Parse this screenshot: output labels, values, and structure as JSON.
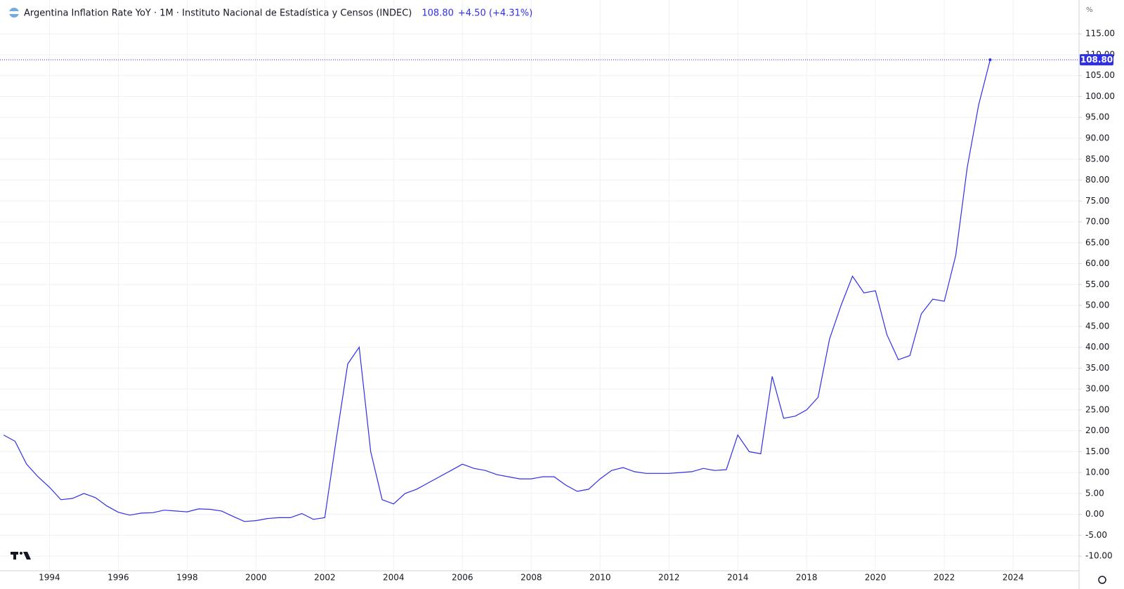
{
  "chart_data": {
    "type": "line",
    "title": "Argentina Inflation Rate YoY · 1M · Instituto Nacional de Estadística y Censos (INDEC)",
    "last_value_label": "108.80",
    "change": "+4.50 (+4.31%)",
    "unit": "%",
    "color": "#2f2fe8",
    "grid": true,
    "categories": [
      null,
      null,
      null,
      null,
      "1994",
      null,
      null,
      null,
      null,
      null,
      "1996",
      null,
      null,
      null,
      null,
      null,
      "1998",
      null,
      null,
      null,
      null,
      null,
      "2000",
      null,
      null,
      null,
      null,
      null,
      "2002",
      null,
      null,
      null,
      null,
      null,
      "2004",
      null,
      null,
      null,
      null,
      null,
      "2006",
      null,
      null,
      null,
      null,
      null,
      "2008",
      null,
      null,
      null,
      null,
      null,
      "2010",
      null,
      null,
      null,
      null,
      null,
      "2012",
      null,
      null,
      null,
      null,
      null,
      "2014",
      null,
      null,
      null,
      null,
      null,
      "2018",
      null,
      null,
      null,
      null,
      null,
      "2020",
      null,
      null,
      null,
      null,
      null,
      "2022",
      null,
      null,
      null,
      null,
      null,
      "2024"
    ],
    "values": [
      19,
      17.5,
      12,
      9,
      6.5,
      3.5,
      3.8,
      5,
      4,
      2,
      0.5,
      -0.2,
      0.3,
      0.4,
      1,
      0.8,
      0.6,
      1.3,
      1.2,
      0.8,
      -0.5,
      -1.7,
      -1.5,
      -1,
      -0.8,
      -0.8,
      0.2,
      -1.2,
      -0.8,
      18,
      36,
      40,
      15,
      3.5,
      2.5,
      5,
      6,
      7.5,
      9,
      10.5,
      12,
      11,
      10.5,
      9.5,
      9,
      8.5,
      8.5,
      9,
      9,
      7,
      5.5,
      6,
      8.5,
      10.5,
      11.2,
      10.2,
      9.8,
      9.8,
      9.8,
      10,
      10.2,
      11,
      10.5,
      10.7,
      19,
      15,
      14.5,
      33,
      23,
      23.5,
      25,
      28,
      42,
      50,
      57,
      53,
      53.5,
      43,
      37,
      38,
      48,
      51.5,
      51,
      62,
      83,
      98,
      108.8,
      null,
      null
    ],
    "ylim": [
      -13.5,
      123.1
    ],
    "yticks": [
      {
        "value": -10,
        "label": "-10.00"
      },
      {
        "value": -5,
        "label": "-5.00"
      },
      {
        "value": 0,
        "label": "0.00"
      },
      {
        "value": 5,
        "label": "5.00"
      },
      {
        "value": 10,
        "label": "10.00"
      },
      {
        "value": 15,
        "label": "15.00"
      },
      {
        "value": 20,
        "label": "20.00"
      },
      {
        "value": 25,
        "label": "25.00"
      },
      {
        "value": 30,
        "label": "30.00"
      },
      {
        "value": 35,
        "label": "35.00"
      },
      {
        "value": 40,
        "label": "40.00"
      },
      {
        "value": 45,
        "label": "45.00"
      },
      {
        "value": 50,
        "label": "50.00"
      },
      {
        "value": 55,
        "label": "55.00"
      },
      {
        "value": 60,
        "label": "60.00"
      },
      {
        "value": 65,
        "label": "65.00"
      },
      {
        "value": 70,
        "label": "70.00"
      },
      {
        "value": 75,
        "label": "75.00"
      },
      {
        "value": 80,
        "label": "80.00"
      },
      {
        "value": 85,
        "label": "85.00"
      },
      {
        "value": 90,
        "label": "90.00"
      },
      {
        "value": 95,
        "label": "95.00"
      },
      {
        "value": 100,
        "label": "100.00"
      },
      {
        "value": 105,
        "label": "105.00"
      },
      {
        "value": 110,
        "label": "110.00"
      },
      {
        "value": 115,
        "label": "115.00"
      }
    ]
  }
}
